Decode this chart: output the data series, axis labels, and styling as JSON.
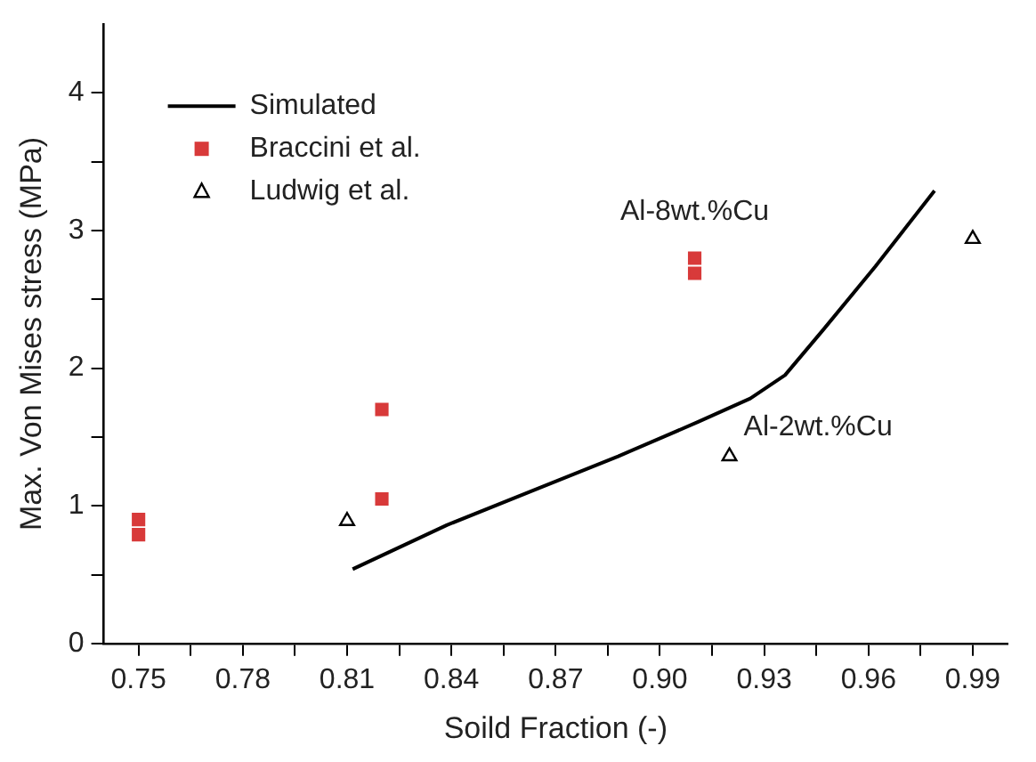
{
  "chart_data": {
    "type": "scatter",
    "xlabel": "Soild Fraction (-)",
    "ylabel": "Max. Von Mises stress (MPa)",
    "xlim": [
      0.74,
      1.0
    ],
    "ylim": [
      0,
      4.5
    ],
    "xticks": [
      0.75,
      {
        "value": 0.765,
        "label": null
      },
      0.78,
      {
        "value": 0.795,
        "label": null
      },
      0.81,
      {
        "value": 0.825,
        "label": null
      },
      0.84,
      {
        "value": 0.855,
        "label": null
      },
      0.87,
      {
        "value": 0.885,
        "label": null
      },
      {
        "value": 0.9,
        "label": "0.90"
      },
      {
        "value": 0.915,
        "label": null
      },
      0.93,
      {
        "value": 0.945,
        "label": null
      },
      0.96,
      {
        "value": 0.975,
        "label": null
      },
      0.99
    ],
    "yticks": [
      0,
      {
        "value": 0.5,
        "label": null
      },
      1,
      {
        "value": 1.5,
        "label": null
      },
      2,
      {
        "value": 2.5,
        "label": null
      },
      3,
      {
        "value": 3.5,
        "label": null
      },
      4
    ],
    "grid": false,
    "legend": "top left",
    "series": [
      {
        "name": "Simulated",
        "type": "line",
        "color": "#000000",
        "marker": "none",
        "line_style": "solid",
        "x": [
          0.8116,
          0.8387,
          0.8634,
          0.888,
          0.911,
          0.926,
          0.936,
          0.947,
          0.962,
          0.979
        ],
        "values": [
          0.54,
          0.86,
          1.11,
          1.36,
          1.61,
          1.78,
          1.95,
          2.28,
          2.74,
          3.29
        ]
      },
      {
        "name": "Braccini et al.",
        "color": "#d83a3a",
        "marker": "square",
        "x": [
          0.75,
          0.75,
          0.82,
          0.82,
          0.91,
          0.91
        ],
        "values": [
          0.9,
          0.79,
          1.7,
          1.05,
          2.8,
          2.69
        ]
      },
      {
        "name": "Ludwig et al.",
        "color": "#000000",
        "marker": "triangle",
        "x": [
          0.81,
          0.92,
          0.99
        ],
        "values": [
          0.89,
          1.36,
          2.94
        ]
      }
    ],
    "annotations": [
      {
        "text": "Al-8wt.%Cu",
        "x": 0.91,
        "y": 2.8
      },
      {
        "text": "Al-2wt.%Cu",
        "x": 0.92,
        "y": 1.36
      }
    ]
  }
}
